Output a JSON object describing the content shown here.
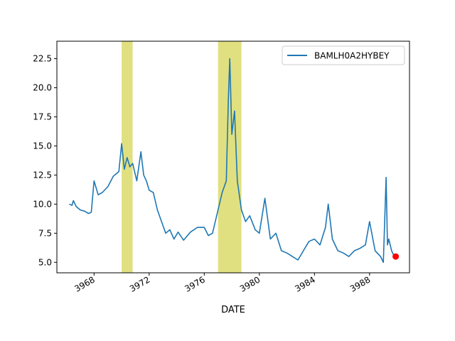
{
  "chart_data": {
    "type": "line",
    "title": "",
    "xlabel": "DATE",
    "ylabel": "",
    "xlim": [
      3965.3,
      3990.9
    ],
    "ylim": [
      4.1,
      24.0
    ],
    "xticks": [
      3968,
      3972,
      3976,
      3980,
      3984,
      3988
    ],
    "yticks": [
      5.0,
      7.5,
      10.0,
      12.5,
      15.0,
      17.5,
      20.0,
      22.5
    ],
    "grid": false,
    "legend": {
      "location": "top-right",
      "entries": [
        "BAMLH0A2HYBEY"
      ]
    },
    "colors": {
      "line": "#1f77b4",
      "shade": "#e0e080",
      "marker": "#ff0000"
    },
    "shaded_regions": [
      [
        3970.0,
        3970.8
      ],
      [
        3977.0,
        3978.7
      ]
    ],
    "last_point": {
      "x": 3989.9,
      "y": 5.5
    },
    "series": [
      {
        "name": "BAMLH0A2HYBEY",
        "x": [
          3966.2,
          3966.4,
          3966.5,
          3966.7,
          3967.0,
          3967.3,
          3967.6,
          3967.8,
          3968.0,
          3968.3,
          3968.6,
          3969.0,
          3969.4,
          3969.8,
          3970.0,
          3970.2,
          3970.4,
          3970.6,
          3970.8,
          3971.1,
          3971.4,
          3971.6,
          3971.8,
          3972.0,
          3972.3,
          3972.6,
          3972.9,
          3973.2,
          3973.5,
          3973.8,
          3974.1,
          3974.5,
          3975.0,
          3975.5,
          3976.0,
          3976.3,
          3976.6,
          3977.0,
          3977.3,
          3977.6,
          3977.75,
          3977.85,
          3978.0,
          3978.2,
          3978.4,
          3978.7,
          3979.0,
          3979.3,
          3979.7,
          3980.0,
          3980.4,
          3980.8,
          3981.2,
          3981.6,
          3982.0,
          3982.4,
          3982.8,
          3983.2,
          3983.6,
          3984.0,
          3984.4,
          3984.8,
          3985.0,
          3985.3,
          3985.7,
          3986.1,
          3986.5,
          3986.9,
          3987.3,
          3987.7,
          3988.0,
          3988.4,
          3988.8,
          3989.0,
          3989.2,
          3989.3,
          3989.4,
          3989.6,
          3989.8
        ],
        "y": [
          10.0,
          9.9,
          10.3,
          9.8,
          9.5,
          9.4,
          9.2,
          9.3,
          12.0,
          10.8,
          11.0,
          11.5,
          12.4,
          12.8,
          15.2,
          13.0,
          14.0,
          13.2,
          13.5,
          12.0,
          14.5,
          12.5,
          12.0,
          11.2,
          11.0,
          9.5,
          8.5,
          7.5,
          7.8,
          7.0,
          7.6,
          6.9,
          7.6,
          8.0,
          8.0,
          7.3,
          7.5,
          9.5,
          11.0,
          12.0,
          19.0,
          22.5,
          16.0,
          18.0,
          12.0,
          9.5,
          8.5,
          9.0,
          7.8,
          7.5,
          10.5,
          7.0,
          7.5,
          6.0,
          5.8,
          5.5,
          5.2,
          6.0,
          6.8,
          7.0,
          6.5,
          8.0,
          10.0,
          7.0,
          6.0,
          5.8,
          5.5,
          6.0,
          6.2,
          6.5,
          8.5,
          6.0,
          5.5,
          5.0,
          12.3,
          6.5,
          7.0,
          6.0,
          5.5
        ]
      }
    ]
  }
}
